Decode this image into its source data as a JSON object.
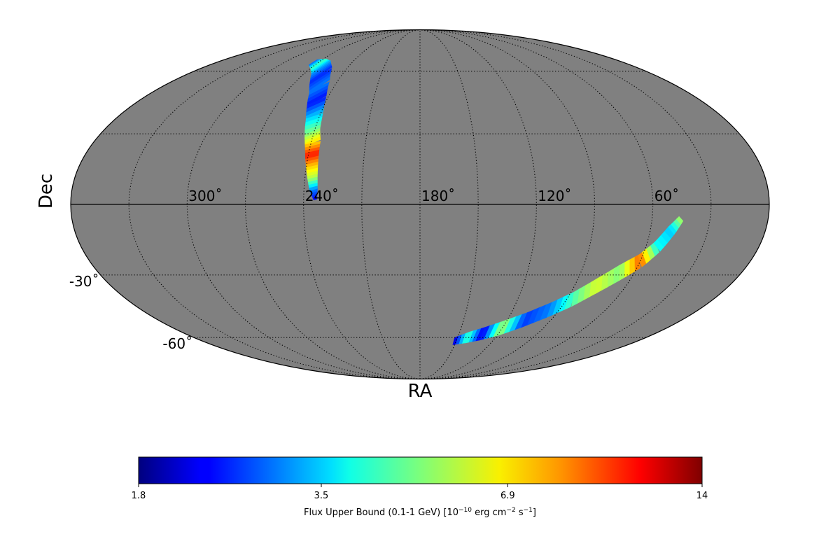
{
  "chart_data": {
    "type": "heatmap",
    "projection": "mollweide",
    "xlabel": "RA",
    "ylabel": "Dec",
    "ra_ticks": [
      {
        "value": 300,
        "label": "300˚"
      },
      {
        "value": 240,
        "label": "240˚"
      },
      {
        "value": 180,
        "label": "180˚"
      },
      {
        "value": 120,
        "label": "120˚"
      },
      {
        "value": 60,
        "label": "60˚"
      }
    ],
    "dec_ticks": [
      {
        "value": -30,
        "label": "-30˚"
      },
      {
        "value": -60,
        "label": "-60˚"
      }
    ],
    "ra_gridlines": [
      0,
      30,
      60,
      90,
      120,
      150,
      180,
      210,
      240,
      270,
      300,
      330,
      360
    ],
    "dec_gridlines": [
      -60,
      -30,
      0,
      30,
      60
    ],
    "grid": true,
    "background_color": "#808080",
    "colorbar": {
      "colormap": "jet",
      "scale": "log",
      "min": 1.8,
      "max": 14,
      "ticks": [
        {
          "value": 1.8,
          "label": "1.8"
        },
        {
          "value": 3.5,
          "label": "3.5"
        },
        {
          "value": 6.9,
          "label": "6.9"
        },
        {
          "value": 14,
          "label": "14"
        }
      ],
      "label_main": "Flux Upper Bound (0.1-1 GeV) [10",
      "label_exp1": "−10",
      "label_mid": " erg cm",
      "label_exp2": "−2",
      "label_mid2": " s",
      "label_exp3": "−1",
      "label_end": "]"
    },
    "regions": [
      {
        "name": "",
        "path": [
          {
            "ra": 275,
            "dec": 65,
            "flux": 2.8
          },
          {
            "ra": 268,
            "dec": 64,
            "flux": 4.5
          },
          {
            "ra": 262,
            "dec": 62,
            "flux": 3.2
          },
          {
            "ra": 256,
            "dec": 58,
            "flux": 2.5
          },
          {
            "ra": 250,
            "dec": 52,
            "flux": 3.0
          },
          {
            "ra": 246,
            "dec": 45,
            "flux": 2.4
          },
          {
            "ra": 243,
            "dec": 38,
            "flux": 3.5
          },
          {
            "ra": 241,
            "dec": 31,
            "flux": 5.0
          },
          {
            "ra": 239,
            "dec": 26,
            "flux": 7.0
          },
          {
            "ra": 238,
            "dec": 21,
            "flux": 10.5
          },
          {
            "ra": 237,
            "dec": 16,
            "flux": 7.2
          },
          {
            "ra": 236,
            "dec": 11,
            "flux": 5.5
          },
          {
            "ra": 235,
            "dec": 6,
            "flux": 3.0
          },
          {
            "ra": 234,
            "dec": 2,
            "flux": 2.3
          }
        ],
        "width_deg": [
          1.5,
          3,
          4,
          5,
          5,
          5,
          4.5,
          4,
          4,
          3.5,
          3,
          2.5,
          2,
          0.8
        ]
      },
      {
        "name": "",
        "path": [
          {
            "ra": 152,
            "dec": -62,
            "flux": 2.0
          },
          {
            "ra": 142,
            "dec": -60,
            "flux": 4.5
          },
          {
            "ra": 132,
            "dec": -58,
            "flux": 2.2
          },
          {
            "ra": 120,
            "dec": -55,
            "flux": 5.5
          },
          {
            "ra": 108,
            "dec": -51,
            "flux": 2.6
          },
          {
            "ra": 96,
            "dec": -46,
            "flux": 3.0
          },
          {
            "ra": 86,
            "dec": -41,
            "flux": 4.5
          },
          {
            "ra": 77,
            "dec": -35,
            "flux": 6.0
          },
          {
            "ra": 68,
            "dec": -29,
            "flux": 5.0
          },
          {
            "ra": 60,
            "dec": -24,
            "flux": 9.0
          },
          {
            "ra": 54,
            "dec": -18,
            "flux": 4.0
          },
          {
            "ra": 49,
            "dec": -11,
            "flux": 3.5
          },
          {
            "ra": 45,
            "dec": -6,
            "flux": 5.5
          }
        ],
        "width_deg": [
          2,
          3,
          3.5,
          4,
          4,
          4,
          4,
          4,
          4,
          3.5,
          3,
          2.5,
          1.5
        ]
      }
    ]
  }
}
